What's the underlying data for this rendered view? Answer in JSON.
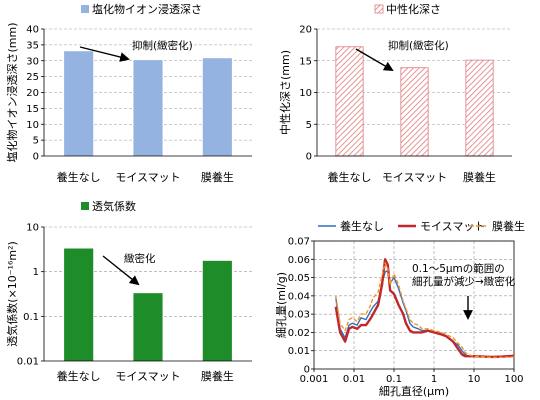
{
  "chart_data": [
    {
      "type": "bar",
      "legend": "塩化物イオン浸透深さ",
      "ylabel": "塩化物イオン浸透深さ(mm)",
      "categories": [
        "養生なし",
        "モイスマット",
        "膜養生"
      ],
      "values": [
        33,
        30.2,
        30.8
      ],
      "ylim": [
        0,
        40
      ],
      "yticks": [
        "0",
        "5",
        "10",
        "15",
        "20",
        "25",
        "30",
        "35",
        "40"
      ],
      "annotation": "抑制(緻密化)",
      "color": "#95b3e0",
      "grid": true
    },
    {
      "type": "bar",
      "legend": "中性化深さ",
      "ylabel": "中性化深さ(mm)",
      "categories": [
        "養生なし",
        "モイスマット",
        "膜養生"
      ],
      "values": [
        17.2,
        13.9,
        15.1
      ],
      "ylim": [
        0,
        20
      ],
      "yticks": [
        "0",
        "5",
        "10",
        "15",
        "20"
      ],
      "annotation": "抑制(緻密化)",
      "color": "#e07a7a",
      "hatched": true,
      "grid": true
    },
    {
      "type": "bar",
      "legend": "透気係数",
      "ylabel": "透気係数(×10⁻¹⁶m²)",
      "categories": [
        "養生なし",
        "モイスマット",
        "膜養生"
      ],
      "values": [
        3.3,
        0.33,
        1.75
      ],
      "yscale": "log",
      "ylim": [
        0.01,
        10
      ],
      "yticks": [
        "0.01",
        "0.1",
        "1",
        "10"
      ],
      "annotation": "緻密化",
      "color": "#1e8c28",
      "grid": true
    },
    {
      "type": "line",
      "xlabel": "細孔直径(μm)",
      "ylabel": "細孔量(ml/g)",
      "xscale": "log",
      "xlim": [
        0.001,
        100
      ],
      "ylim": [
        0,
        0.07
      ],
      "xticks": [
        "0.001",
        "0.01",
        "0.1",
        "1",
        "10",
        "100"
      ],
      "yticks": [
        "0",
        "0.01",
        "0.02",
        "0.03",
        "0.04",
        "0.05",
        "0.06",
        "0.07"
      ],
      "annotation_lines": [
        "0.1～5μmの範囲の",
        "細孔量が減少→緻密化"
      ],
      "legend_position": "top",
      "grid": true,
      "series": [
        {
          "name": "養生なし",
          "color": "#2e6fbf",
          "x": [
            0.0035,
            0.0045,
            0.006,
            0.0075,
            0.009,
            0.012,
            0.015,
            0.02,
            0.025,
            0.03,
            0.04,
            0.05,
            0.06,
            0.07,
            0.08,
            0.1,
            0.13,
            0.17,
            0.2,
            0.25,
            0.3,
            0.4,
            0.5,
            0.7,
            1,
            1.5,
            2,
            3,
            4,
            5,
            6,
            7,
            10,
            15,
            20,
            30,
            50,
            100
          ],
          "y": [
            0.039,
            0.022,
            0.017,
            0.024,
            0.025,
            0.024,
            0.028,
            0.027,
            0.031,
            0.034,
            0.037,
            0.047,
            0.053,
            0.054,
            0.047,
            0.05,
            0.044,
            0.036,
            0.032,
            0.025,
            0.023,
            0.022,
            0.021,
            0.021,
            0.02,
            0.019,
            0.018,
            0.015,
            0.013,
            0.01,
            0.008,
            0.007,
            0.007,
            0.0068,
            0.0066,
            0.0064,
            0.0066,
            0.007
          ]
        },
        {
          "name": "モイスマット",
          "color": "#c0282d",
          "x": [
            0.0035,
            0.0045,
            0.006,
            0.0075,
            0.009,
            0.012,
            0.015,
            0.02,
            0.025,
            0.03,
            0.04,
            0.05,
            0.06,
            0.07,
            0.08,
            0.1,
            0.13,
            0.17,
            0.2,
            0.25,
            0.3,
            0.4,
            0.5,
            0.7,
            1,
            1.5,
            2,
            3,
            4,
            5,
            6,
            7,
            10,
            15,
            20,
            30,
            50,
            100
          ],
          "y": [
            0.034,
            0.02,
            0.015,
            0.022,
            0.023,
            0.022,
            0.024,
            0.024,
            0.027,
            0.03,
            0.035,
            0.046,
            0.06,
            0.057,
            0.043,
            0.041,
            0.035,
            0.03,
            0.025,
            0.021,
            0.02,
            0.02,
            0.02,
            0.021,
            0.02,
            0.019,
            0.018,
            0.015,
            0.011,
            0.008,
            0.007,
            0.007,
            0.007,
            0.0069,
            0.0067,
            0.0066,
            0.0068,
            0.0072
          ]
        },
        {
          "name": "膜養生",
          "color": "#f0962d",
          "dash": true,
          "x": [
            0.0035,
            0.0045,
            0.006,
            0.0075,
            0.009,
            0.012,
            0.015,
            0.02,
            0.025,
            0.03,
            0.04,
            0.05,
            0.06,
            0.07,
            0.08,
            0.1,
            0.13,
            0.17,
            0.2,
            0.25,
            0.3,
            0.4,
            0.5,
            0.7,
            1,
            1.5,
            2,
            3,
            4,
            5,
            6,
            7,
            10,
            15,
            20,
            30,
            50,
            100
          ],
          "y": [
            0.04,
            0.025,
            0.021,
            0.027,
            0.028,
            0.026,
            0.03,
            0.03,
            0.034,
            0.039,
            0.042,
            0.051,
            0.058,
            0.055,
            0.046,
            0.052,
            0.046,
            0.037,
            0.033,
            0.027,
            0.025,
            0.024,
            0.022,
            0.022,
            0.021,
            0.02,
            0.019,
            0.017,
            0.014,
            0.012,
            0.009,
            0.008,
            0.007,
            0.0068,
            0.0065,
            0.0063,
            0.0064,
            0.0066
          ]
        }
      ]
    }
  ]
}
